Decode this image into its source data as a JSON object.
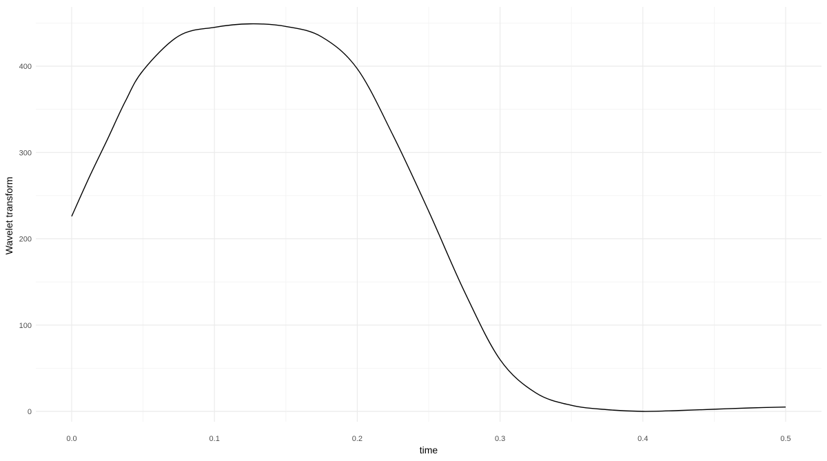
{
  "chart_data": {
    "type": "line",
    "title": "",
    "xlabel": "time",
    "ylabel": "Wavelet transform",
    "xlim": [
      0,
      0.5
    ],
    "ylim": [
      0,
      449
    ],
    "x_ticks": [
      "0.0",
      "0.1",
      "0.2",
      "0.3",
      "0.4",
      "0.5"
    ],
    "y_ticks": [
      "0",
      "100",
      "200",
      "300",
      "400"
    ],
    "grid": true,
    "line_color": "#000000",
    "series": [
      {
        "x": [
          0,
          0.0125,
          0.025,
          0.0375,
          0.05,
          0.075,
          0.1,
          0.125,
          0.15,
          0.175,
          0.2,
          0.225,
          0.25,
          0.275,
          0.3,
          0.325,
          0.35,
          0.375,
          0.4,
          0.425,
          0.45,
          0.475,
          0.5
        ],
        "y": [
          226,
          272,
          315,
          359,
          395,
          435,
          445,
          449,
          446,
          434,
          397,
          320,
          232,
          139,
          60,
          21.5,
          7,
          2,
          0,
          1,
          2.5,
          4,
          5
        ]
      }
    ]
  }
}
